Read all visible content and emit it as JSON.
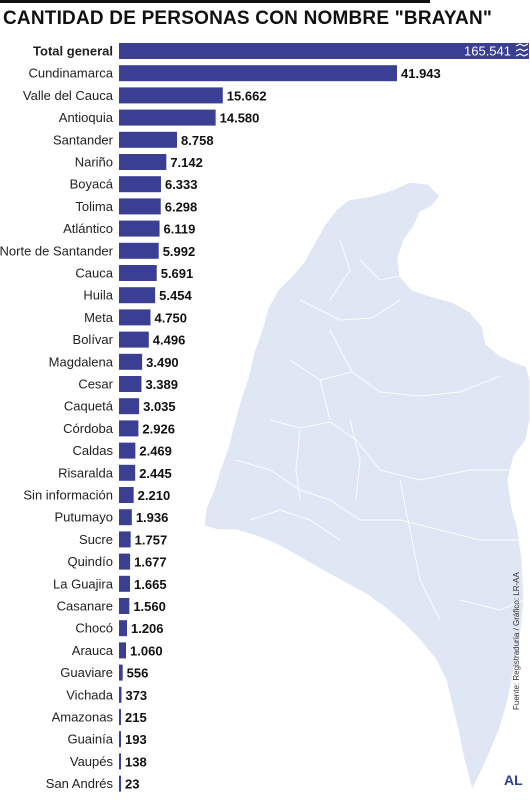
{
  "title": "CANTIDAD DE PERSONAS CON NOMBRE \"BRAYAN\"",
  "source": "Fuente: Registraduría / Gráfico: LR-AA",
  "logo": "AL",
  "colors": {
    "bar": "#3a3f94",
    "map": "#dfe7f4",
    "map_border": "#ffffff"
  },
  "chart_data": {
    "type": "bar",
    "orientation": "horizontal",
    "title": "CANTIDAD DE PERSONAS CON NOMBRE \"BRAYAN\"",
    "categories": [
      "Total general",
      "Cundinamarca",
      "Valle del Cauca",
      "Antioquia",
      "Santander",
      "Nariño",
      "Boyacá",
      "Tolima",
      "Atlántico",
      "Norte de Santander",
      "Cauca",
      "Huila",
      "Meta",
      "Bolívar",
      "Magdalena",
      "Cesar",
      "Caquetá",
      "Córdoba",
      "Caldas",
      "Risaralda",
      "Sin información",
      "Putumayo",
      "Sucre",
      "Quindío",
      "La Guajira",
      "Casanare",
      "Chocó",
      "Arauca",
      "Guaviare",
      "Vichada",
      "Amazonas",
      "Guainía",
      "Vaupés",
      "San Andrés"
    ],
    "values": [
      165541,
      41943,
      15662,
      14580,
      8758,
      7142,
      6333,
      6298,
      6119,
      5992,
      5691,
      5454,
      4750,
      4496,
      3490,
      3389,
      3035,
      2926,
      2469,
      2445,
      2210,
      1936,
      1757,
      1677,
      1665,
      1560,
      1206,
      1060,
      556,
      373,
      215,
      193,
      138,
      23
    ],
    "value_labels": [
      "165.541",
      "41.943",
      "15.662",
      "14.580",
      "8.758",
      "7.142",
      "6.333",
      "6.298",
      "6.119",
      "5.992",
      "5.691",
      "5.454",
      "4.750",
      "4.496",
      "3.490",
      "3.389",
      "3.035",
      "2.926",
      "2.469",
      "2.445",
      "2.210",
      "1.936",
      "1.757",
      "1.677",
      "1.665",
      "1.560",
      "1.206",
      "1.060",
      "556",
      "373",
      "215",
      "193",
      "138",
      "23"
    ],
    "axis_break_on_first_bar": true
  }
}
